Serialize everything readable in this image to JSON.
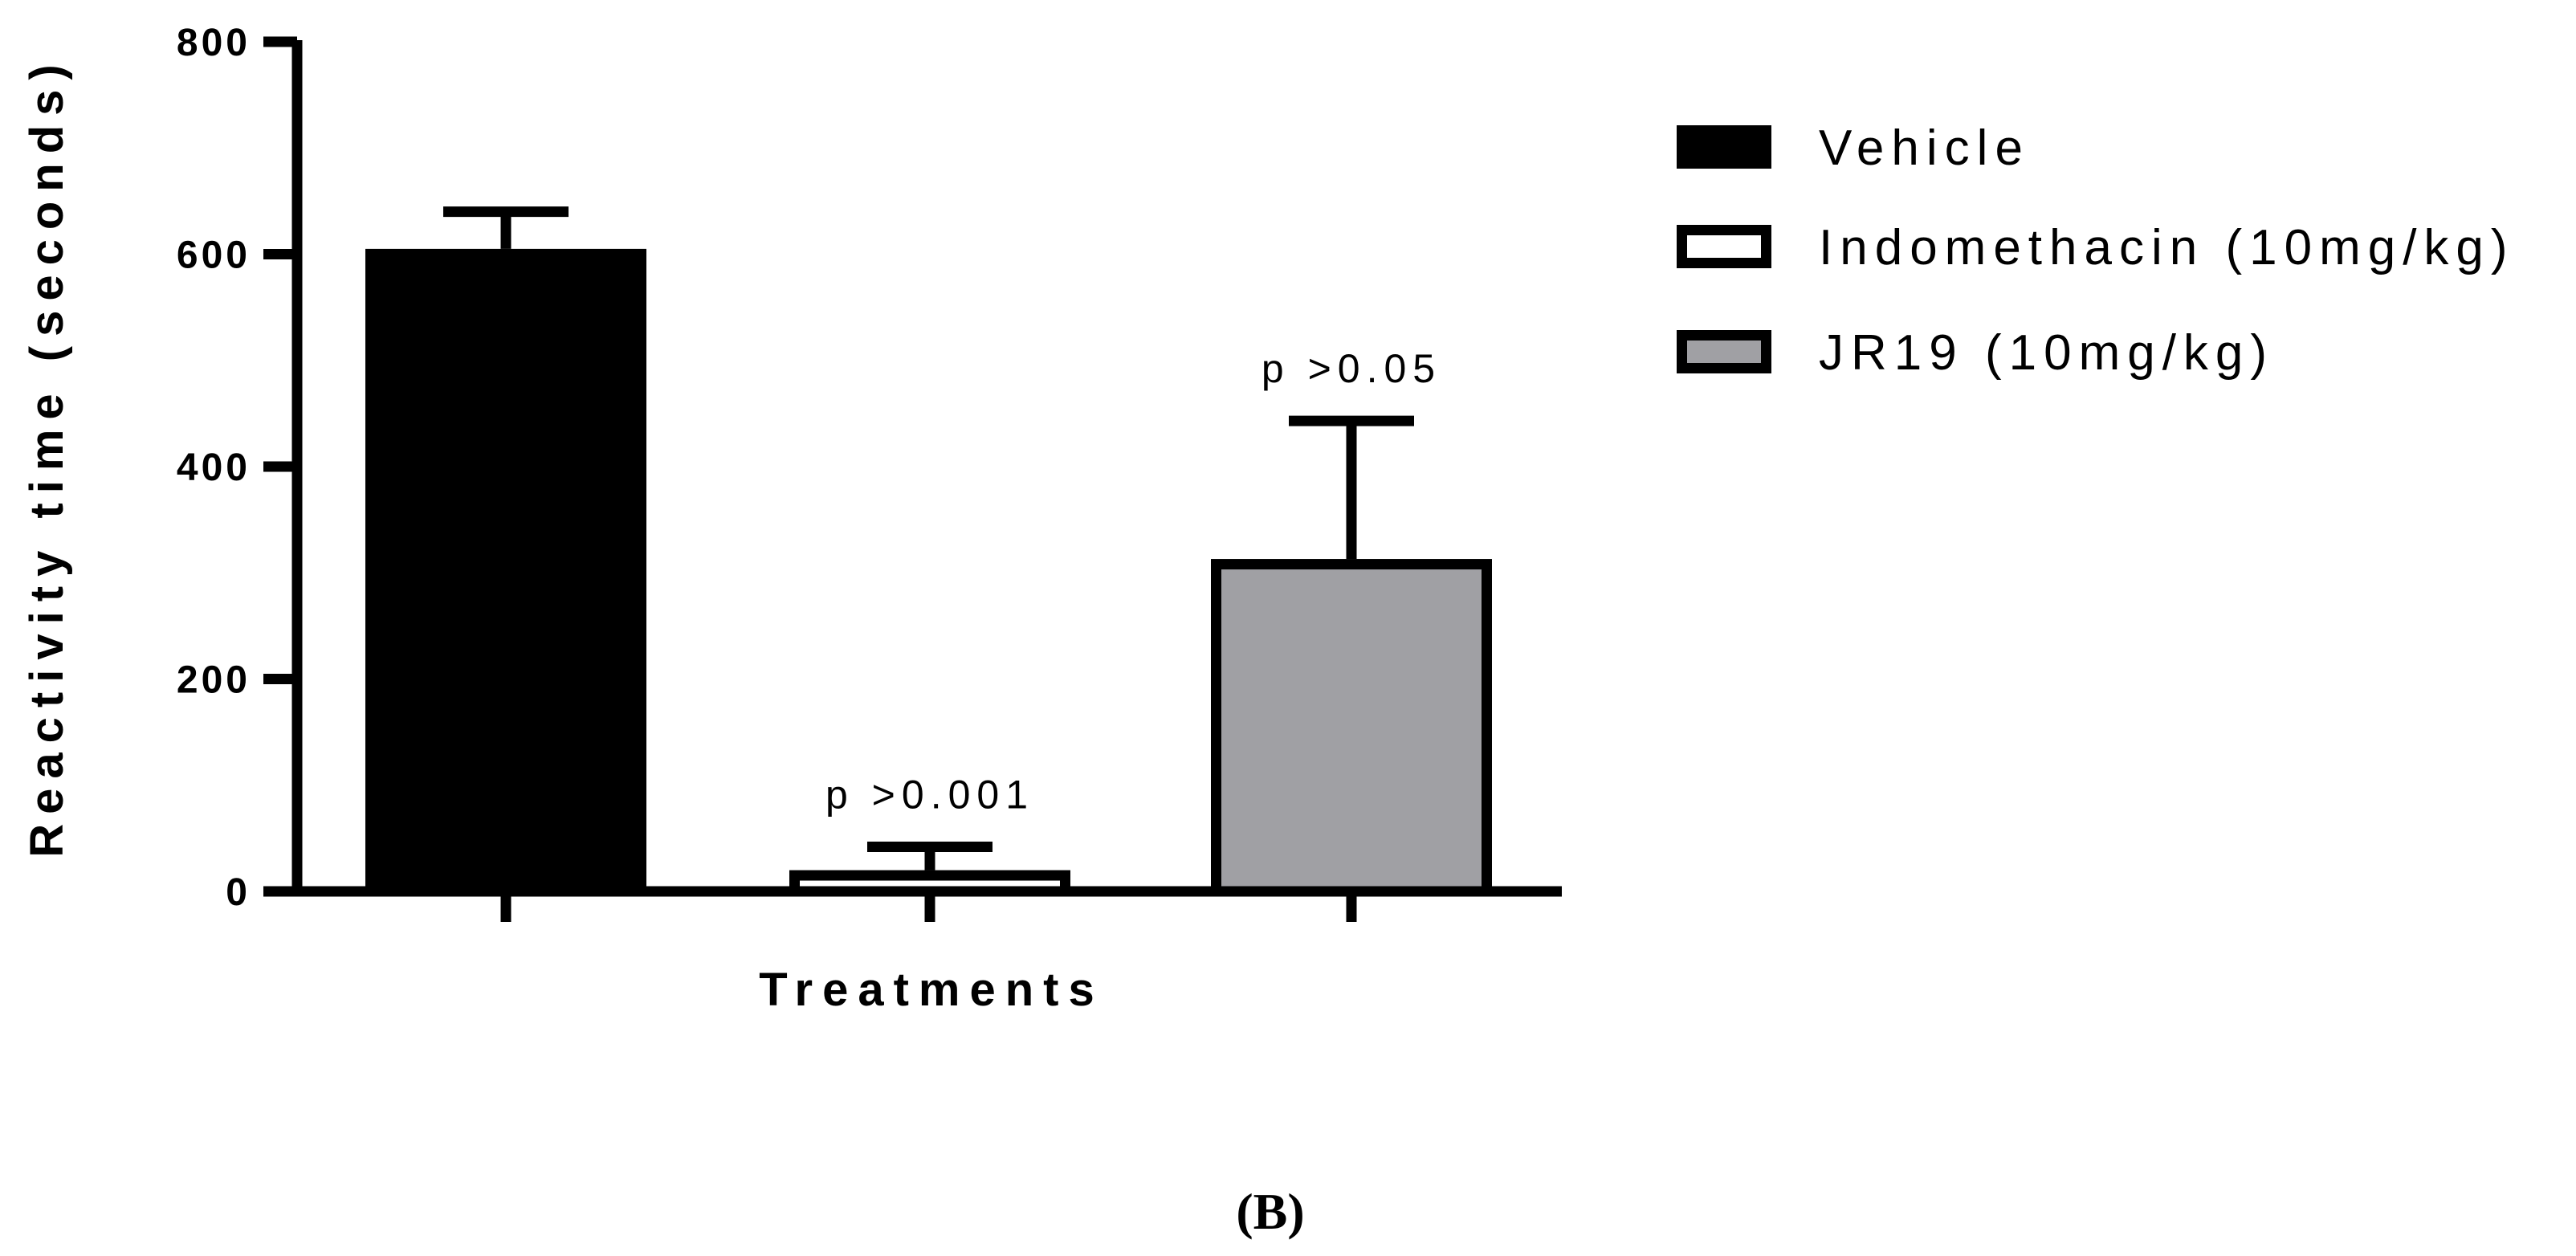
{
  "chart_data": {
    "type": "bar",
    "categories": [
      "Vehicle",
      "Indomethacin (10mg/kg)",
      "JR19 (10mg/kg)"
    ],
    "values": [
      605,
      20,
      313
    ],
    "errors": [
      35,
      22,
      130
    ],
    "colors": [
      "#000000",
      "#ffffff",
      "#a0a0a4"
    ],
    "annotations": [
      "",
      "p >0.001",
      "p >0.05"
    ],
    "xlabel": "Treatments",
    "ylabel": "Reactivity time (seconds)",
    "ylim": [
      0,
      800
    ],
    "yticks": [
      0,
      200,
      400,
      600,
      800
    ],
    "legend": {
      "position": "right",
      "entries": [
        "Vehicle",
        "Indomethacin (10mg/kg)",
        "JR19 (10mg/kg)"
      ]
    },
    "panel_label": "(B)"
  }
}
